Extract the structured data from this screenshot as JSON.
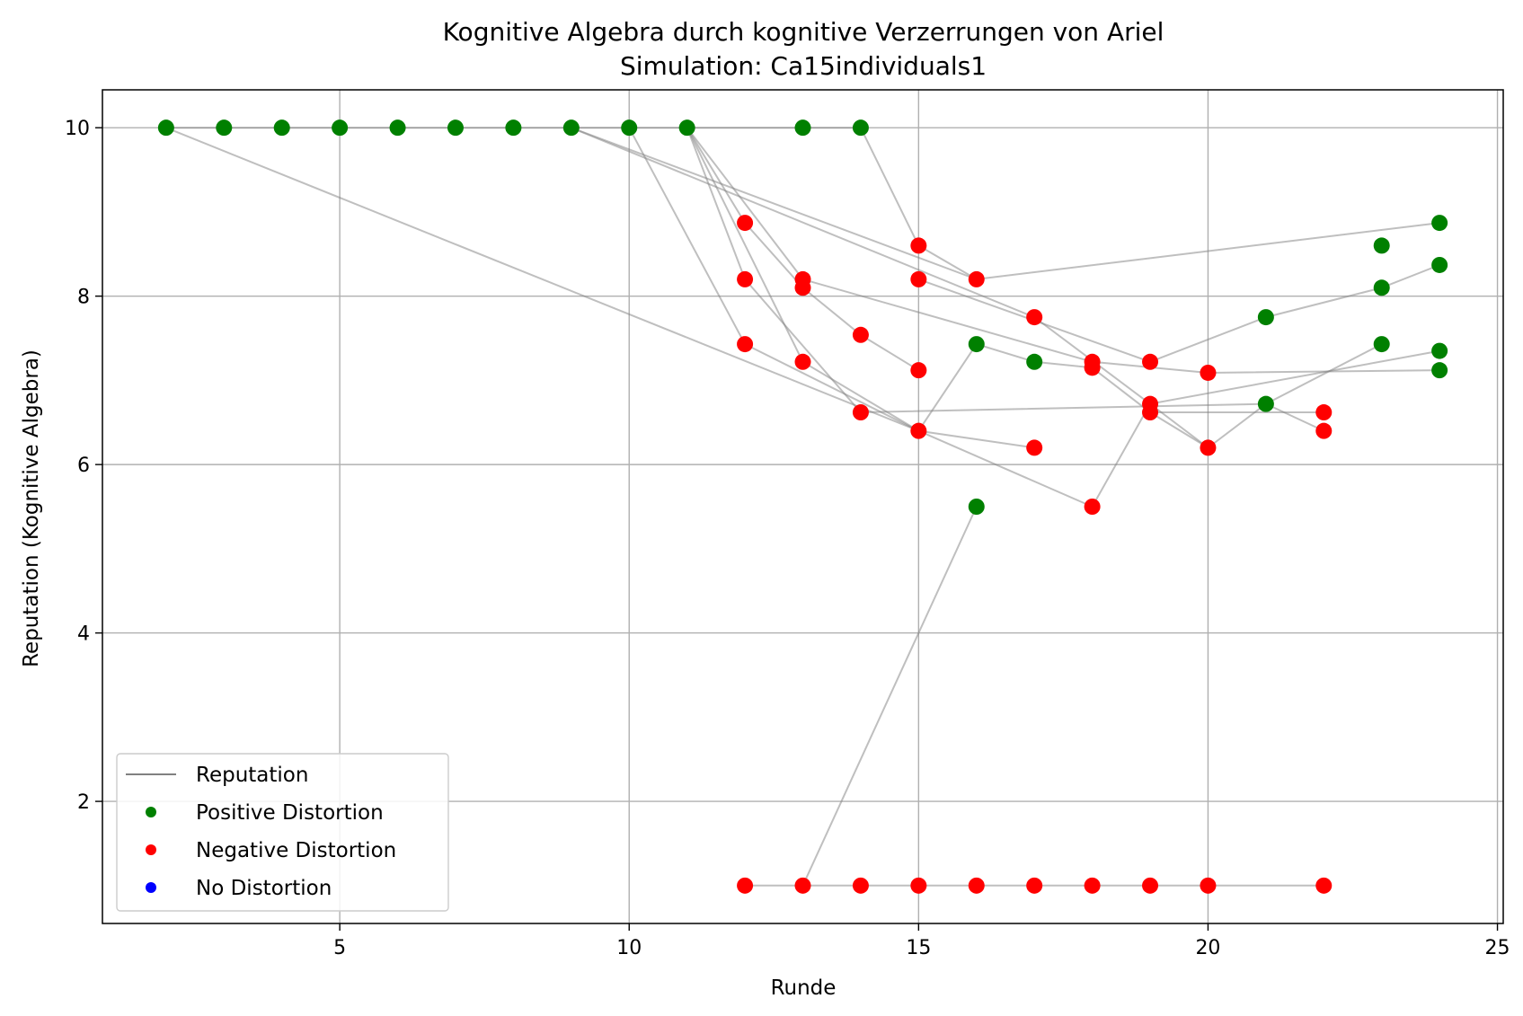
{
  "chart_data": {
    "type": "scatter",
    "title": "Kognitive Algebra durch kognitive Verzerrungen von Ariel",
    "subtitle": "Simulation: Ca15individuals1",
    "xlabel": "Runde",
    "ylabel": "Reputation (Kognitive Algebra)",
    "xlim": [
      0.9,
      25.1
    ],
    "ylim": [
      0.55,
      10.45
    ],
    "xticks": [
      5,
      10,
      15,
      20,
      25
    ],
    "yticks": [
      2,
      4,
      6,
      8,
      10
    ],
    "grid": true,
    "legend_position": "lower-left",
    "colors": {
      "line": "#808080",
      "positive": "#008000",
      "negative": "#ff0000",
      "none": "#0000ff"
    },
    "legend": [
      {
        "label": "Reputation",
        "kind": "line",
        "color": "#808080"
      },
      {
        "label": "Positive Distortion",
        "kind": "marker",
        "color": "#008000"
      },
      {
        "label": "Negative Distortion",
        "kind": "marker",
        "color": "#ff0000"
      },
      {
        "label": "No Distortion",
        "kind": "marker",
        "color": "#0000ff"
      }
    ],
    "lines": [
      [
        [
          2,
          10
        ],
        [
          3,
          10
        ],
        [
          4,
          10
        ],
        [
          5,
          10
        ],
        [
          6,
          10
        ],
        [
          7,
          10
        ],
        [
          8,
          10
        ],
        [
          9,
          10
        ],
        [
          10,
          10
        ],
        [
          11,
          10
        ],
        [
          13,
          10
        ],
        [
          14,
          10
        ]
      ],
      [
        [
          2,
          10
        ],
        [
          15,
          6.4
        ],
        [
          16,
          7.43
        ],
        [
          17,
          7.22
        ],
        [
          18,
          7.15
        ],
        [
          19,
          6.62
        ],
        [
          20,
          6.2
        ]
      ],
      [
        [
          9,
          10
        ],
        [
          16,
          8.2
        ],
        [
          24,
          8.87
        ]
      ],
      [
        [
          9,
          10
        ],
        [
          17,
          7.75
        ],
        [
          19,
          6.72
        ],
        [
          24,
          7.35
        ]
      ],
      [
        [
          10,
          10
        ],
        [
          12,
          7.43
        ],
        [
          15,
          6.4
        ],
        [
          17,
          6.2
        ]
      ],
      [
        [
          11,
          10
        ],
        [
          12,
          8.2
        ],
        [
          14,
          6.62
        ],
        [
          21,
          6.72
        ],
        [
          22,
          6.4
        ]
      ],
      [
        [
          11,
          10
        ],
        [
          12,
          8.87
        ],
        [
          13,
          8.1
        ],
        [
          14,
          7.54
        ],
        [
          15,
          7.12
        ]
      ],
      [
        [
          11,
          10
        ],
        [
          13,
          8.2
        ],
        [
          18,
          7.22
        ],
        [
          20,
          7.09
        ],
        [
          24,
          7.12
        ]
      ],
      [
        [
          11,
          10
        ],
        [
          13,
          7.22
        ],
        [
          15,
          6.4
        ],
        [
          18,
          5.5
        ],
        [
          19,
          6.72
        ],
        [
          20,
          6.2
        ],
        [
          21,
          6.72
        ],
        [
          23,
          7.43
        ]
      ],
      [
        [
          14,
          10
        ],
        [
          15,
          8.6
        ],
        [
          16,
          8.2
        ]
      ],
      [
        [
          15,
          8.2
        ],
        [
          19,
          7.22
        ],
        [
          21,
          7.75
        ],
        [
          23,
          8.1
        ],
        [
          24,
          8.37
        ]
      ],
      [
        [
          19,
          6.62
        ],
        [
          22,
          6.62
        ]
      ],
      [
        [
          13,
          1
        ],
        [
          16,
          5.5
        ]
      ],
      [
        [
          12,
          1
        ],
        [
          13,
          1
        ],
        [
          14,
          1
        ],
        [
          15,
          1
        ],
        [
          16,
          1
        ],
        [
          17,
          1
        ],
        [
          18,
          1
        ],
        [
          19,
          1
        ],
        [
          20,
          1
        ],
        [
          22,
          1
        ]
      ]
    ],
    "points": [
      {
        "x": 2,
        "y": 10,
        "d": "positive"
      },
      {
        "x": 3,
        "y": 10,
        "d": "positive"
      },
      {
        "x": 4,
        "y": 10,
        "d": "positive"
      },
      {
        "x": 5,
        "y": 10,
        "d": "positive"
      },
      {
        "x": 6,
        "y": 10,
        "d": "positive"
      },
      {
        "x": 7,
        "y": 10,
        "d": "positive"
      },
      {
        "x": 8,
        "y": 10,
        "d": "positive"
      },
      {
        "x": 9,
        "y": 10,
        "d": "positive"
      },
      {
        "x": 10,
        "y": 10,
        "d": "positive"
      },
      {
        "x": 11,
        "y": 10,
        "d": "positive"
      },
      {
        "x": 13,
        "y": 10,
        "d": "positive"
      },
      {
        "x": 14,
        "y": 10,
        "d": "positive"
      },
      {
        "x": 12,
        "y": 8.87,
        "d": "negative"
      },
      {
        "x": 12,
        "y": 8.2,
        "d": "negative"
      },
      {
        "x": 12,
        "y": 7.43,
        "d": "negative"
      },
      {
        "x": 12,
        "y": 1,
        "d": "negative"
      },
      {
        "x": 13,
        "y": 8.2,
        "d": "negative"
      },
      {
        "x": 13,
        "y": 8.1,
        "d": "negative"
      },
      {
        "x": 13,
        "y": 7.22,
        "d": "negative"
      },
      {
        "x": 13,
        "y": 1,
        "d": "negative"
      },
      {
        "x": 14,
        "y": 7.54,
        "d": "negative"
      },
      {
        "x": 14,
        "y": 6.62,
        "d": "negative"
      },
      {
        "x": 14,
        "y": 1,
        "d": "negative"
      },
      {
        "x": 15,
        "y": 8.6,
        "d": "negative"
      },
      {
        "x": 15,
        "y": 8.2,
        "d": "negative"
      },
      {
        "x": 15,
        "y": 7.12,
        "d": "negative"
      },
      {
        "x": 15,
        "y": 6.4,
        "d": "negative"
      },
      {
        "x": 15,
        "y": 1,
        "d": "negative"
      },
      {
        "x": 16,
        "y": 8.2,
        "d": "negative"
      },
      {
        "x": 16,
        "y": 7.43,
        "d": "positive"
      },
      {
        "x": 16,
        "y": 5.5,
        "d": "positive"
      },
      {
        "x": 16,
        "y": 1,
        "d": "negative"
      },
      {
        "x": 17,
        "y": 7.75,
        "d": "negative"
      },
      {
        "x": 17,
        "y": 7.22,
        "d": "positive"
      },
      {
        "x": 17,
        "y": 6.2,
        "d": "negative"
      },
      {
        "x": 17,
        "y": 1,
        "d": "negative"
      },
      {
        "x": 18,
        "y": 7.22,
        "d": "negative"
      },
      {
        "x": 18,
        "y": 7.15,
        "d": "negative"
      },
      {
        "x": 18,
        "y": 5.5,
        "d": "negative"
      },
      {
        "x": 18,
        "y": 1,
        "d": "negative"
      },
      {
        "x": 19,
        "y": 7.22,
        "d": "negative"
      },
      {
        "x": 19,
        "y": 6.72,
        "d": "negative"
      },
      {
        "x": 19,
        "y": 6.62,
        "d": "negative"
      },
      {
        "x": 19,
        "y": 1,
        "d": "negative"
      },
      {
        "x": 20,
        "y": 7.09,
        "d": "negative"
      },
      {
        "x": 20,
        "y": 6.2,
        "d": "negative"
      },
      {
        "x": 20,
        "y": 1,
        "d": "negative"
      },
      {
        "x": 21,
        "y": 7.75,
        "d": "positive"
      },
      {
        "x": 21,
        "y": 6.72,
        "d": "positive"
      },
      {
        "x": 22,
        "y": 6.62,
        "d": "negative"
      },
      {
        "x": 22,
        "y": 6.4,
        "d": "negative"
      },
      {
        "x": 22,
        "y": 1,
        "d": "negative"
      },
      {
        "x": 23,
        "y": 8.6,
        "d": "positive"
      },
      {
        "x": 23,
        "y": 8.1,
        "d": "positive"
      },
      {
        "x": 23,
        "y": 7.43,
        "d": "positive"
      },
      {
        "x": 24,
        "y": 8.87,
        "d": "positive"
      },
      {
        "x": 24,
        "y": 8.37,
        "d": "positive"
      },
      {
        "x": 24,
        "y": 7.35,
        "d": "positive"
      },
      {
        "x": 24,
        "y": 7.12,
        "d": "positive"
      }
    ]
  }
}
